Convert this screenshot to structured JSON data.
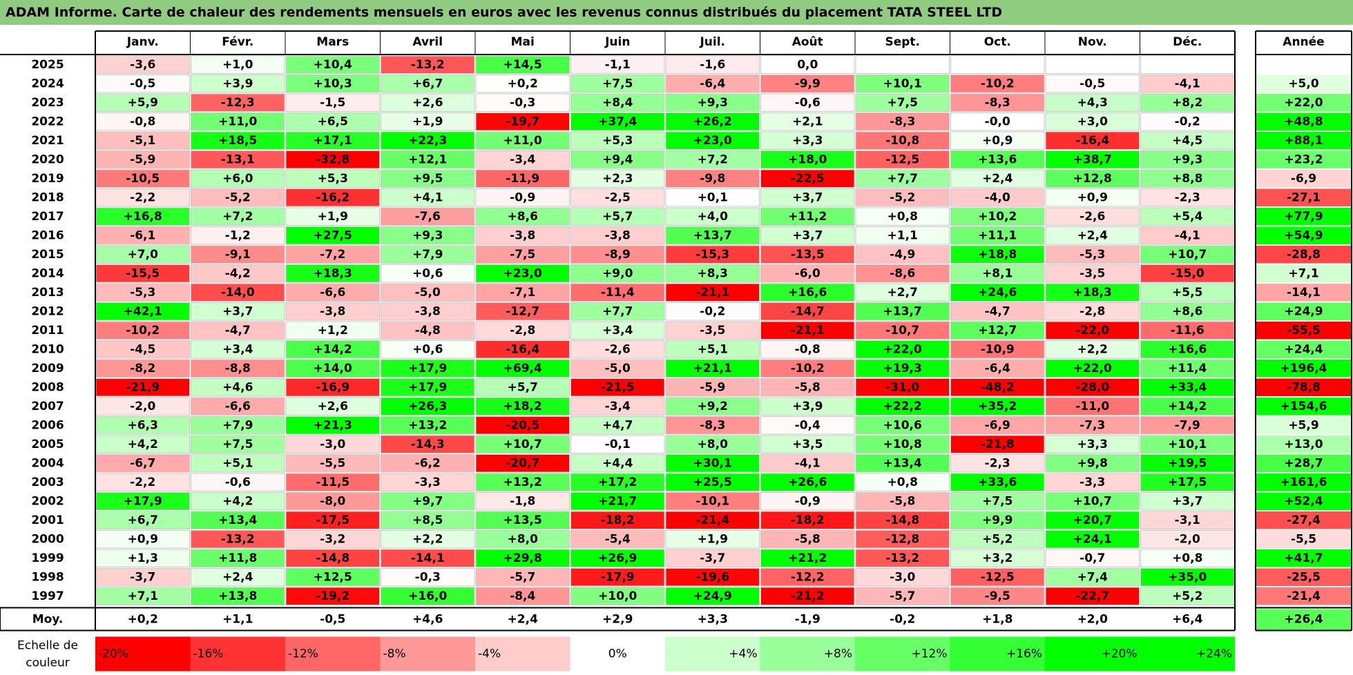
{
  "title": "ADAM Informe. Carte de chaleur des rendements mensuels en euros avec les revenus connus distribués du placement TATA STEEL LTD",
  "chart_data": {
    "type": "heatmap",
    "columns": [
      "Janv.",
      "Févr.",
      "Mars",
      "Avril",
      "Mai",
      "Juin",
      "Juil.",
      "Août",
      "Sept.",
      "Oct.",
      "Nov.",
      "Déc."
    ],
    "year_column_label": "Année",
    "average_row_label": "Moy.",
    "rows": [
      {
        "year": "2025",
        "values": [
          "-3,6",
          "+1,0",
          "+10,4",
          "-13,2",
          "+14,5",
          "-1,1",
          "-1,6",
          "0,0",
          "",
          "",
          "",
          ""
        ],
        "annual": ""
      },
      {
        "year": "2024",
        "values": [
          "-0,5",
          "+3,9",
          "+10,3",
          "+6,7",
          "+0,2",
          "+7,5",
          "-6,4",
          "-9,9",
          "+10,1",
          "-10,2",
          "-0,5",
          "-4,1"
        ],
        "annual": "+5,0"
      },
      {
        "year": "2023",
        "values": [
          "+5,9",
          "-12,3",
          "-1,5",
          "+2,6",
          "-0,3",
          "+8,4",
          "+9,3",
          "-0,6",
          "+7,5",
          "-8,3",
          "+4,3",
          "+8,2"
        ],
        "annual": "+22,0"
      },
      {
        "year": "2022",
        "values": [
          "-0,8",
          "+11,0",
          "+6,5",
          "+1,9",
          "-19,7",
          "+37,4",
          "+26,2",
          "+2,1",
          "-8,3",
          "-0,0",
          "+3,0",
          "-0,2"
        ],
        "annual": "+48,8"
      },
      {
        "year": "2021",
        "values": [
          "-5,1",
          "+18,5",
          "+17,1",
          "+22,3",
          "+11,0",
          "+5,3",
          "+23,0",
          "+3,3",
          "-10,8",
          "+0,9",
          "-16,4",
          "+4,5"
        ],
        "annual": "+88,1"
      },
      {
        "year": "2020",
        "values": [
          "-5,9",
          "-13,1",
          "-32,8",
          "+12,1",
          "-3,4",
          "+9,4",
          "+7,2",
          "+18,0",
          "-12,5",
          "+13,6",
          "+38,7",
          "+9,3"
        ],
        "annual": "+23,2"
      },
      {
        "year": "2019",
        "values": [
          "-10,5",
          "+6,0",
          "+5,3",
          "+9,5",
          "-11,9",
          "+2,3",
          "-9,8",
          "-22,5",
          "+7,7",
          "+2,4",
          "+12,8",
          "+8,8"
        ],
        "annual": "-6,9"
      },
      {
        "year": "2018",
        "values": [
          "-2,2",
          "-5,2",
          "-16,2",
          "+4,1",
          "-0,9",
          "-2,5",
          "+0,1",
          "+3,7",
          "-5,2",
          "-4,0",
          "+0,9",
          "-2,3"
        ],
        "annual": "-27,1"
      },
      {
        "year": "2017",
        "values": [
          "+16,8",
          "+7,2",
          "+1,9",
          "-7,6",
          "+8,6",
          "+5,7",
          "+4,0",
          "+11,2",
          "+0,8",
          "+10,2",
          "-2,6",
          "+5,4"
        ],
        "annual": "+77,9"
      },
      {
        "year": "2016",
        "values": [
          "-6,1",
          "-1,2",
          "+27,5",
          "+9,3",
          "-3,8",
          "-3,8",
          "+13,7",
          "+3,7",
          "+1,1",
          "+11,1",
          "+2,4",
          "-4,1"
        ],
        "annual": "+54,9"
      },
      {
        "year": "2015",
        "values": [
          "+7,0",
          "-9,1",
          "-7,2",
          "+7,9",
          "-7,5",
          "-8,9",
          "-15,3",
          "-13,5",
          "-4,9",
          "+18,8",
          "-5,3",
          "+10,7"
        ],
        "annual": "-28,8"
      },
      {
        "year": "2014",
        "values": [
          "-15,5",
          "-4,2",
          "+18,3",
          "+0,6",
          "+23,0",
          "+9,0",
          "+8,3",
          "-6,0",
          "-8,6",
          "+8,1",
          "-3,5",
          "-15,0"
        ],
        "annual": "+7,1"
      },
      {
        "year": "2013",
        "values": [
          "-5,3",
          "-14,0",
          "-6,6",
          "-5,0",
          "-7,1",
          "-11,4",
          "-21,1",
          "+16,6",
          "+2,7",
          "+24,6",
          "+18,3",
          "+5,5"
        ],
        "annual": "-14,1"
      },
      {
        "year": "2012",
        "values": [
          "+42,1",
          "+3,7",
          "-3,8",
          "-3,8",
          "-12,7",
          "+7,7",
          "-0,2",
          "-14,7",
          "+13,7",
          "-4,7",
          "-2,8",
          "+8,6"
        ],
        "annual": "+24,9"
      },
      {
        "year": "2011",
        "values": [
          "-10,2",
          "-4,7",
          "+1,2",
          "-4,8",
          "-2,8",
          "+3,4",
          "-3,5",
          "-21,1",
          "-10,7",
          "+12,7",
          "-22,0",
          "-11,6"
        ],
        "annual": "-55,5"
      },
      {
        "year": "2010",
        "values": [
          "-4,5",
          "+3,4",
          "+14,2",
          "+0,6",
          "-16,4",
          "-2,6",
          "+5,1",
          "-0,8",
          "+22,0",
          "-10,9",
          "+2,2",
          "+16,6"
        ],
        "annual": "+24,4"
      },
      {
        "year": "2009",
        "values": [
          "-8,2",
          "-8,8",
          "+14,0",
          "+17,9",
          "+69,4",
          "-5,0",
          "+21,1",
          "-10,2",
          "+19,3",
          "-6,4",
          "+22,0",
          "+11,4"
        ],
        "annual": "+196,4"
      },
      {
        "year": "2008",
        "values": [
          "-21,9",
          "+4,6",
          "-16,9",
          "+17,9",
          "+5,7",
          "-21,5",
          "-5,9",
          "-5,8",
          "-31,0",
          "-48,2",
          "-28,0",
          "+33,4"
        ],
        "annual": "-78,8"
      },
      {
        "year": "2007",
        "values": [
          "-2,0",
          "-6,6",
          "+2,6",
          "+26,3",
          "+18,2",
          "-3,4",
          "+9,2",
          "+3,9",
          "+22,2",
          "+35,2",
          "-11,0",
          "+14,2"
        ],
        "annual": "+154,6"
      },
      {
        "year": "2006",
        "values": [
          "+6,3",
          "+7,9",
          "+21,3",
          "+13,2",
          "-20,5",
          "+4,7",
          "-8,3",
          "-0,4",
          "+10,6",
          "-6,9",
          "-7,3",
          "-7,9"
        ],
        "annual": "+5,9"
      },
      {
        "year": "2005",
        "values": [
          "+4,2",
          "+7,5",
          "-3,0",
          "-14,3",
          "+10,7",
          "-0,1",
          "+8,0",
          "+3,5",
          "+10,8",
          "-21,8",
          "+3,3",
          "+10,1"
        ],
        "annual": "+13,0"
      },
      {
        "year": "2004",
        "values": [
          "-6,7",
          "+5,1",
          "-5,5",
          "-6,2",
          "-20,7",
          "+4,4",
          "+30,1",
          "-4,1",
          "+13,4",
          "-2,3",
          "+9,8",
          "+19,5"
        ],
        "annual": "+28,7"
      },
      {
        "year": "2003",
        "values": [
          "-2,2",
          "-0,6",
          "-11,5",
          "-3,3",
          "+13,2",
          "+17,2",
          "+25,5",
          "+26,6",
          "+0,8",
          "+33,6",
          "-3,3",
          "+17,5"
        ],
        "annual": "+161,6"
      },
      {
        "year": "2002",
        "values": [
          "+17,9",
          "+4,2",
          "-8,0",
          "+9,7",
          "-1,8",
          "+21,7",
          "-10,1",
          "-0,9",
          "-5,8",
          "+7,5",
          "+10,7",
          "+3,7"
        ],
        "annual": "+52,4"
      },
      {
        "year": "2001",
        "values": [
          "+6,7",
          "+13,4",
          "-17,5",
          "+8,5",
          "+13,5",
          "-18,2",
          "-21,4",
          "-18,2",
          "-14,8",
          "+9,9",
          "+20,7",
          "-3,1"
        ],
        "annual": "-27,4"
      },
      {
        "year": "2000",
        "values": [
          "+0,9",
          "-13,2",
          "-3,2",
          "+2,2",
          "+8,0",
          "-5,4",
          "+1,9",
          "-5,8",
          "-12,8",
          "+5,2",
          "+24,1",
          "-2,0"
        ],
        "annual": "-5,5"
      },
      {
        "year": "1999",
        "values": [
          "+1,3",
          "+11,8",
          "-14,8",
          "-14,1",
          "+29,8",
          "+26,9",
          "-3,7",
          "+21,2",
          "-13,2",
          "+3,2",
          "-0,7",
          "+0,8"
        ],
        "annual": "+41,7"
      },
      {
        "year": "1998",
        "values": [
          "-3,7",
          "+2,4",
          "+12,5",
          "-0,3",
          "-5,7",
          "-17,9",
          "-19,6",
          "-12,2",
          "-3,0",
          "-12,5",
          "+7,4",
          "+35,0"
        ],
        "annual": "-25,5"
      },
      {
        "year": "1997",
        "values": [
          "+7,1",
          "+13,8",
          "-19,2",
          "+16,0",
          "-8,4",
          "+10,0",
          "+24,9",
          "-21,2",
          "-5,7",
          "-9,5",
          "-22,7",
          "+5,2"
        ],
        "annual": "-21,4"
      }
    ],
    "average": {
      "values": [
        "+0,2",
        "+1,1",
        "-0,5",
        "+4,6",
        "+2,4",
        "+2,9",
        "+3,3",
        "-1,9",
        "-0,2",
        "+1,8",
        "+2,0",
        "+6,4"
      ],
      "annual": "+26,4"
    },
    "color_scale": {
      "label": "Echelle de couleur",
      "stops": [
        "-20%",
        "-16%",
        "-12%",
        "-8%",
        "-4%",
        "0%",
        "+4%",
        "+8%",
        "+12%",
        "+16%",
        "+20%",
        "+24%"
      ],
      "min_color": "#ff0000",
      "mid_color": "#ffffff",
      "max_color": "#00ff00"
    }
  }
}
